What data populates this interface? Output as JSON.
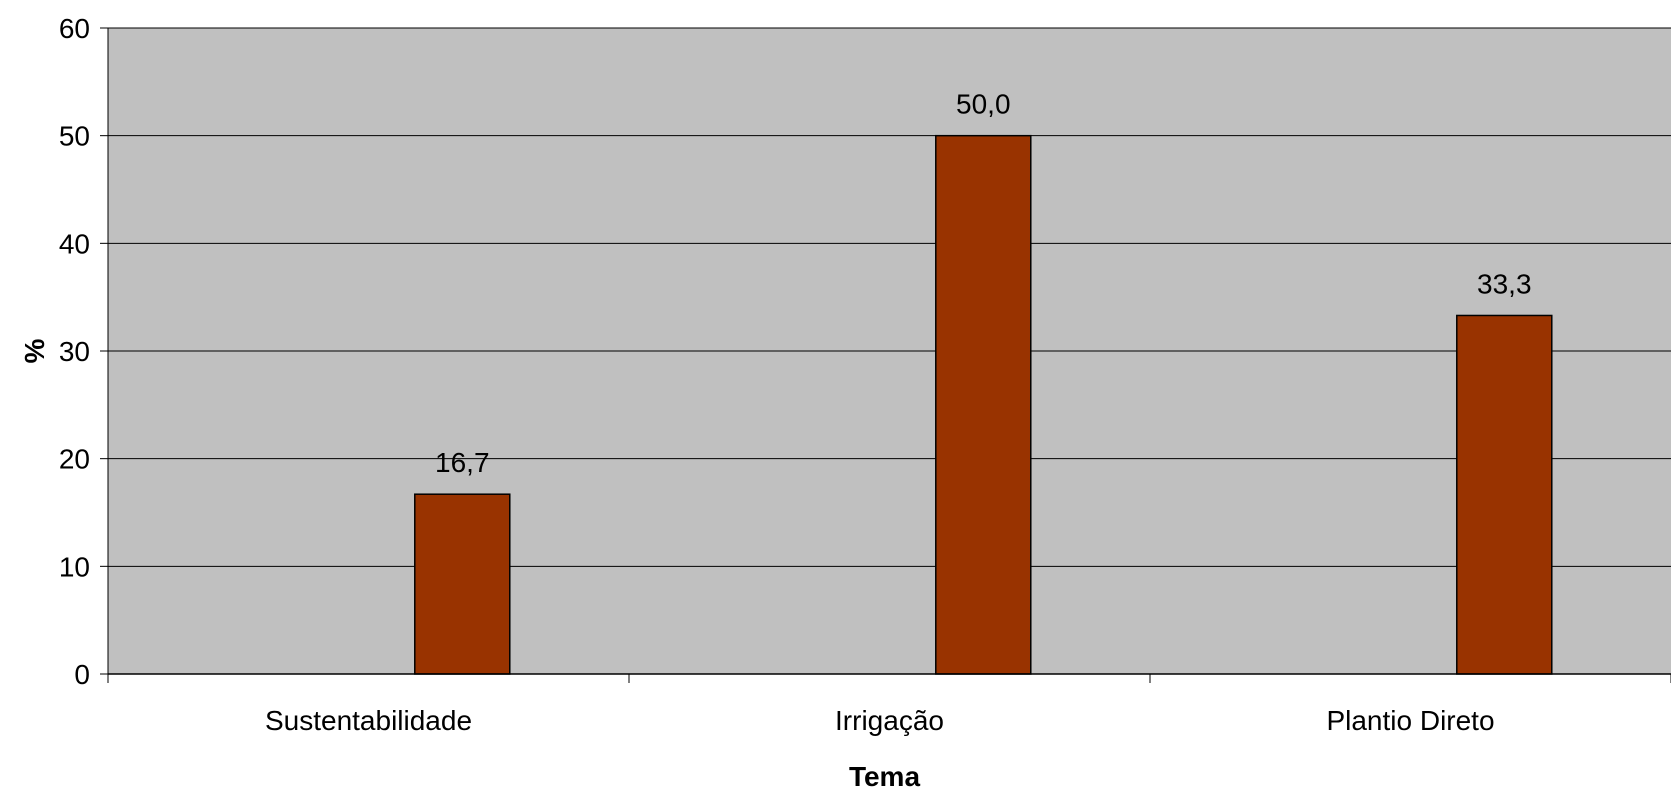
{
  "chart_data": {
    "type": "bar",
    "categories": [
      "Sustentabilidade",
      "Irrigação",
      "Plantio Direto"
    ],
    "values": [
      16.7,
      50.0,
      33.3
    ],
    "data_labels": [
      "16,7",
      "50,0",
      "33,3"
    ],
    "xlabel": "Tema",
    "ylabel": "%",
    "ylim": [
      0,
      60
    ],
    "yticks": [
      0,
      10,
      20,
      30,
      40,
      50,
      60
    ],
    "grid": true,
    "legend": "none",
    "colors": {
      "plot_background": "#C0C0C0",
      "bar_fill": "#993300",
      "bar_stroke": "#000000",
      "gridline": "#000000"
    }
  }
}
